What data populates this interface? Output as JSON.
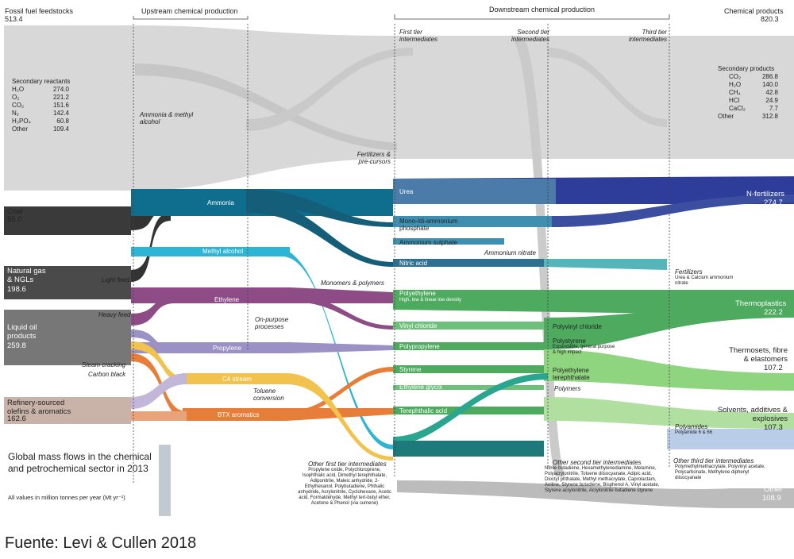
{
  "headers": {
    "fossil": "Fossil fuel feedstocks",
    "fossil_value": "513.4",
    "upstream": "Upstream chemical production",
    "downstream": "Downstream chemical production",
    "products": "Chemical products",
    "products_value": "820.3",
    "first_tier": "First tier intermediates",
    "second_tier": "Second tier intermediates",
    "third_tier": "Third tier intermediates"
  },
  "secondary_reactants": {
    "title": "Secondary reactants",
    "rows": [
      {
        "k": "H₂O",
        "v": "274.0"
      },
      {
        "k": "O₂",
        "v": "221.2"
      },
      {
        "k": "CO₂",
        "v": "151.6"
      },
      {
        "k": "N₂",
        "v": "142.4"
      },
      {
        "k": "H₃PO₄",
        "v": "60.8"
      },
      {
        "k": "Other",
        "v": "109.4"
      }
    ]
  },
  "secondary_products": {
    "title": "Secondary products",
    "rows": [
      {
        "k": "CO₂",
        "v": "286.8"
      },
      {
        "k": "H₂O",
        "v": "140.0"
      },
      {
        "k": "CH₄",
        "v": "42.8"
      },
      {
        "k": "HCl",
        "v": "24.9"
      },
      {
        "k": "CaCl₂",
        "v": "7.7"
      },
      {
        "k": "Other",
        "v": "312.8"
      }
    ]
  },
  "feedstocks": {
    "coal": "Coal",
    "coal_value": "55.0",
    "natgas": "Natural gas & NGLs",
    "natgas_value": "198.6",
    "liquid": "Liquid oil products",
    "liquid_value": "259.8",
    "refinery": "Refinery-sourced olefins & aromatics",
    "refinery_value": "162.6"
  },
  "feed_labels": {
    "light": "Light feed",
    "heavy": "Heavy feed",
    "steam": "Steam cracking",
    "carbon": "Carbon black"
  },
  "upstream_nodes": {
    "ammonia_methyl": "Ammonia & methyl alcohol",
    "ammonia": "Ammonia",
    "methyl": "Methyl alcohol",
    "ethylene": "Ethylene",
    "propylene": "Propylene",
    "c4": "C4 stream",
    "btx": "BTX aromatics",
    "onpurpose": "On-purpose processes",
    "toluene": "Toluene conversion"
  },
  "groups": {
    "fertilizers": "Fertilizers & pre-cursors",
    "monomers": "Monomers & polymers",
    "other_first": "Other first tier intermediates",
    "other_first_list": "Propylene oxide, Polychloroprene, Isophthalic acid, Dimethyl terephthalate, Adiponitrile, Maleic anhydride, 2-Ethylhexanol, Polybutadiene, Phthalic anhydride, Acrylonitrile, Cyclohexane, Acetic acid, Formaldehyde, Methyl tert-butyl ether, Acetone & Phenol (via cumene)",
    "other_second": "Other second tier intermediates",
    "other_second_list": "Nitrile butadiene, Hexamethylenediamine, Melamine, Polyacrylonitrile, Toluene diisocyanate, Adipic acid, Dioctyl phthalate, Methyl methacrylate, Caprolactam, Aniline, Styrene butadiene, Bisphenol A, Vinyl acetate, Styrene acrylonitrile, Acrylonitrile butadiene styrene",
    "other_third": "Other third tier intermediates",
    "other_third_list": "Polymethylmethacrylate, Polyvinyl acetate, Polycarbonate, Methylene diphenyl diisocyanate"
  },
  "first_tier_nodes": {
    "urea": "Urea",
    "mono": "Mono-/di-ammonium phosphate",
    "ammsulph": "Ammonium sulphate",
    "nitric": "Nitric acid",
    "pe": "Polyethylene",
    "pe_sub": "High, low & linear low density",
    "vinyl": "Vinyl chloride",
    "pp": "Polypropylene",
    "styrene": "Styrene",
    "eg": "Ethylene glycol",
    "tpa": "Terephthalic acid"
  },
  "second_tier_nodes": {
    "ammnitrate": "Ammonium nitrate",
    "pvc": "Polyvinyl chloride",
    "ps": "Polystyrene",
    "ps_sub": "Expandable, general purpose & high impact",
    "pet": "Polyethylene terephthalate",
    "polymers": "Polymers"
  },
  "third_tier_nodes": {
    "fertilizers": "Fertilizers",
    "fert_sub": "Urea & Calcium ammonium nitrate",
    "polyamides": "Polyamides",
    "polyamides_sub": "Polyamide 6 & 66"
  },
  "products": {
    "nfert": "N-fertilizers",
    "nfert_value": "274.7",
    "thermoplastics": "Thermoplastics",
    "thermoplastics_value": "222.2",
    "thermosets": "Thermosets, fibre & elastomers",
    "thermosets_value": "107.2",
    "solvents": "Solvents, additives & explosives",
    "solvents_value": "107.3",
    "other": "Other",
    "other_value": "108.9"
  },
  "title": "Global mass flows in the chemical and petrochemical sector in 2013",
  "subtitle": "All values in million tonnes per year (Mt yr⁻¹)",
  "source": "Fuente: Levi & Cullen 2018",
  "colors": {
    "grey": "#d3d3d3",
    "dark": "#3a3a3a",
    "ammonia": "#0f6e8e",
    "methyl": "#2eb4d4",
    "ethylene": "#8e4c86",
    "propylene": "#9b91c4",
    "c4": "#f1c34e",
    "btx": "#e67e3a",
    "urea_blue": "#2f3d9a",
    "green": "#4daa5f",
    "light_green": "#8fd47e",
    "steel": "#9fb7d6"
  }
}
